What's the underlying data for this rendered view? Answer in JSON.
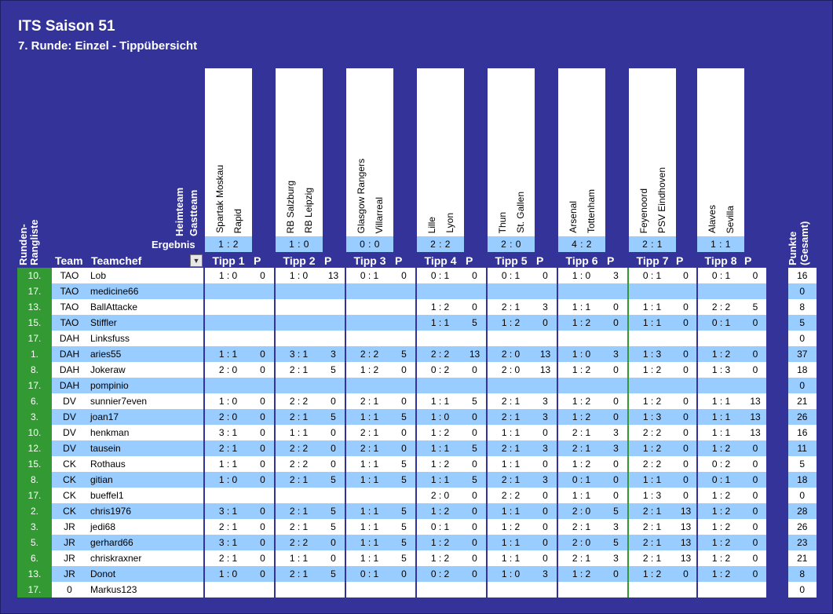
{
  "header": {
    "title": "ITS Saison 51",
    "subtitle": "7. Runde: Einzel - Tippübersicht"
  },
  "labels": {
    "heimteam": "Heimteam",
    "gastteam": "Gastteam",
    "ergebnis": "Ergebnis",
    "runden_rangliste": "Runden-Rangliste",
    "punkte_gesamt": "Punkte (Gesamt)",
    "team": "Team",
    "teamchef": "Teamchef",
    "p": "P",
    "filter_icon": "▼"
  },
  "matches": [
    {
      "tipp": "Tipp 1",
      "home": "Spartak Moskau",
      "away": "Rapid",
      "result": "1 : 2"
    },
    {
      "tipp": "Tipp 2",
      "home": "RB Salzburg",
      "away": "RB Leipzig",
      "result": "1 : 0"
    },
    {
      "tipp": "Tipp 3",
      "home": "Glasgow Rangers",
      "away": "Villarreal",
      "result": "0 : 0"
    },
    {
      "tipp": "Tipp 4",
      "home": "Lille",
      "away": "Lyon",
      "result": "2 : 2"
    },
    {
      "tipp": "Tipp 5",
      "home": "Thun",
      "away": "St. Gallen",
      "result": "2 : 0"
    },
    {
      "tipp": "Tipp 6",
      "home": "Arsenal",
      "away": "Tottenham",
      "result": "4 : 2"
    },
    {
      "tipp": "Tipp 7",
      "home": "Feyenoord",
      "away": "PSV Eindhoven",
      "result": "2 : 1"
    },
    {
      "tipp": "Tipp 8",
      "home": "Alaves",
      "away": "Sevilla",
      "result": "1 : 1"
    }
  ],
  "rows": [
    {
      "rank": "10.",
      "team": "TAO",
      "chef": "Lob",
      "tips": [
        "1 : 0",
        "1 : 0",
        "0 : 1",
        "0 : 1",
        "0 : 1",
        "1 : 0",
        "0 : 1",
        "0 : 1"
      ],
      "pts": [
        "0",
        "13",
        "0",
        "0",
        "0",
        "3",
        "0",
        "0"
      ],
      "total": "16"
    },
    {
      "rank": "17.",
      "team": "TAO",
      "chef": "medicine66",
      "tips": [
        "",
        "",
        "",
        "",
        "",
        "",
        "",
        ""
      ],
      "pts": [
        "",
        "",
        "",
        "",
        "",
        "",
        "",
        ""
      ],
      "total": "0"
    },
    {
      "rank": "13.",
      "team": "TAO",
      "chef": "BallAttacke",
      "tips": [
        "",
        "",
        "",
        "1 : 2",
        "2 : 1",
        "1 : 1",
        "1 : 1",
        "2 : 2"
      ],
      "pts": [
        "",
        "",
        "",
        "0",
        "3",
        "0",
        "0",
        "5"
      ],
      "total": "8"
    },
    {
      "rank": "15.",
      "team": "TAO",
      "chef": "Stiffler",
      "tips": [
        "",
        "",
        "",
        "1 : 1",
        "1 : 2",
        "1 : 2",
        "1 : 1",
        "0 : 1"
      ],
      "pts": [
        "",
        "",
        "",
        "5",
        "0",
        "0",
        "0",
        "0"
      ],
      "total": "5"
    },
    {
      "rank": "17.",
      "team": "DAH",
      "chef": "Linksfuss",
      "tips": [
        "",
        "",
        "",
        "",
        "",
        "",
        "",
        ""
      ],
      "pts": [
        "",
        "",
        "",
        "",
        "",
        "",
        "",
        ""
      ],
      "total": "0"
    },
    {
      "rank": "1.",
      "team": "DAH",
      "chef": "aries55",
      "tips": [
        "1 : 1",
        "3 : 1",
        "2 : 2",
        "2 : 2",
        "2 : 0",
        "1 : 0",
        "1 : 3",
        "1 : 2"
      ],
      "pts": [
        "0",
        "3",
        "5",
        "13",
        "13",
        "3",
        "0",
        "0"
      ],
      "total": "37"
    },
    {
      "rank": "8.",
      "team": "DAH",
      "chef": "Jokeraw",
      "tips": [
        "2 : 0",
        "2 : 1",
        "1 : 2",
        "0 : 2",
        "2 : 0",
        "1 : 2",
        "1 : 2",
        "1 : 3"
      ],
      "pts": [
        "0",
        "5",
        "0",
        "0",
        "13",
        "0",
        "0",
        "0"
      ],
      "total": "18"
    },
    {
      "rank": "17.",
      "team": "DAH",
      "chef": "pompinio",
      "tips": [
        "",
        "",
        "",
        "",
        "",
        "",
        "",
        ""
      ],
      "pts": [
        "",
        "",
        "",
        "",
        "",
        "",
        "",
        ""
      ],
      "total": "0"
    },
    {
      "rank": "6.",
      "team": "DV",
      "chef": "sunnier7even",
      "tips": [
        "1 : 0",
        "2 : 2",
        "2 : 1",
        "1 : 1",
        "2 : 1",
        "1 : 2",
        "1 : 2",
        "1 : 1"
      ],
      "pts": [
        "0",
        "0",
        "0",
        "5",
        "3",
        "0",
        "0",
        "13"
      ],
      "total": "21"
    },
    {
      "rank": "3.",
      "team": "DV",
      "chef": "joan17",
      "tips": [
        "2 : 0",
        "2 : 1",
        "1 : 1",
        "1 : 0",
        "2 : 1",
        "1 : 2",
        "1 : 3",
        "1 : 1"
      ],
      "pts": [
        "0",
        "5",
        "5",
        "0",
        "3",
        "0",
        "0",
        "13"
      ],
      "total": "26"
    },
    {
      "rank": "10.",
      "team": "DV",
      "chef": "henkman",
      "tips": [
        "3 : 1",
        "1 : 1",
        "2 : 1",
        "1 : 2",
        "1 : 1",
        "2 : 1",
        "2 : 2",
        "1 : 1"
      ],
      "pts": [
        "0",
        "0",
        "0",
        "0",
        "0",
        "3",
        "0",
        "13"
      ],
      "total": "16"
    },
    {
      "rank": "12.",
      "team": "DV",
      "chef": "tausein",
      "tips": [
        "2 : 1",
        "2 : 2",
        "2 : 1",
        "1 : 1",
        "2 : 1",
        "2 : 1",
        "1 : 2",
        "1 : 2"
      ],
      "pts": [
        "0",
        "0",
        "0",
        "5",
        "3",
        "3",
        "0",
        "0"
      ],
      "total": "11"
    },
    {
      "rank": "15.",
      "team": "CK",
      "chef": "Rothaus",
      "tips": [
        "1 : 1",
        "2 : 2",
        "1 : 1",
        "1 : 2",
        "1 : 1",
        "1 : 2",
        "2 : 2",
        "0 : 2"
      ],
      "pts": [
        "0",
        "0",
        "5",
        "0",
        "0",
        "0",
        "0",
        "0"
      ],
      "total": "5"
    },
    {
      "rank": "8.",
      "team": "CK",
      "chef": "gitian",
      "tips": [
        "1 : 0",
        "2 : 1",
        "1 : 1",
        "1 : 1",
        "2 : 1",
        "0 : 1",
        "1 : 1",
        "0 : 1"
      ],
      "pts": [
        "0",
        "5",
        "5",
        "5",
        "3",
        "0",
        "0",
        "0"
      ],
      "total": "18"
    },
    {
      "rank": "17.",
      "team": "CK",
      "chef": "bueffel1",
      "tips": [
        "",
        "",
        "",
        "2 : 0",
        "2 : 2",
        "1 : 1",
        "1 : 3",
        "1 : 2"
      ],
      "pts": [
        "",
        "",
        "",
        "0",
        "0",
        "0",
        "0",
        "0"
      ],
      "total": "0"
    },
    {
      "rank": "2.",
      "team": "CK",
      "chef": "chris1976",
      "tips": [
        "3 : 1",
        "2 : 1",
        "1 : 1",
        "1 : 2",
        "1 : 1",
        "2 : 0",
        "2 : 1",
        "1 : 2"
      ],
      "pts": [
        "0",
        "5",
        "5",
        "0",
        "0",
        "5",
        "13",
        "0"
      ],
      "total": "28"
    },
    {
      "rank": "3.",
      "team": "JR",
      "chef": "jedi68",
      "tips": [
        "2 : 1",
        "2 : 1",
        "1 : 1",
        "0 : 1",
        "1 : 2",
        "2 : 1",
        "2 : 1",
        "1 : 2"
      ],
      "pts": [
        "0",
        "5",
        "5",
        "0",
        "0",
        "3",
        "13",
        "0"
      ],
      "total": "26"
    },
    {
      "rank": "5.",
      "team": "JR",
      "chef": "gerhard66",
      "tips": [
        "3 : 1",
        "2 : 2",
        "1 : 1",
        "1 : 2",
        "1 : 1",
        "2 : 0",
        "2 : 1",
        "1 : 2"
      ],
      "pts": [
        "0",
        "0",
        "5",
        "0",
        "0",
        "5",
        "13",
        "0"
      ],
      "total": "23"
    },
    {
      "rank": "6.",
      "team": "JR",
      "chef": "chriskraxner",
      "tips": [
        "2 : 1",
        "1 : 1",
        "1 : 1",
        "1 : 2",
        "1 : 1",
        "2 : 1",
        "2 : 1",
        "1 : 2"
      ],
      "pts": [
        "0",
        "0",
        "5",
        "0",
        "0",
        "3",
        "13",
        "0"
      ],
      "total": "21"
    },
    {
      "rank": "13.",
      "team": "JR",
      "chef": "Donot",
      "tips": [
        "1 : 0",
        "2 : 1",
        "0 : 1",
        "0 : 2",
        "1 : 0",
        "1 : 2",
        "1 : 2",
        "1 : 2"
      ],
      "pts": [
        "0",
        "5",
        "0",
        "0",
        "3",
        "0",
        "0",
        "0"
      ],
      "total": "8"
    },
    {
      "rank": "17.",
      "team": "0",
      "chef": "Markus123",
      "tips": [
        "",
        "",
        "",
        "",
        "",
        "",
        "",
        ""
      ],
      "pts": [
        "",
        "",
        "",
        "",
        "",
        "",
        "",
        ""
      ],
      "total": "0"
    }
  ]
}
